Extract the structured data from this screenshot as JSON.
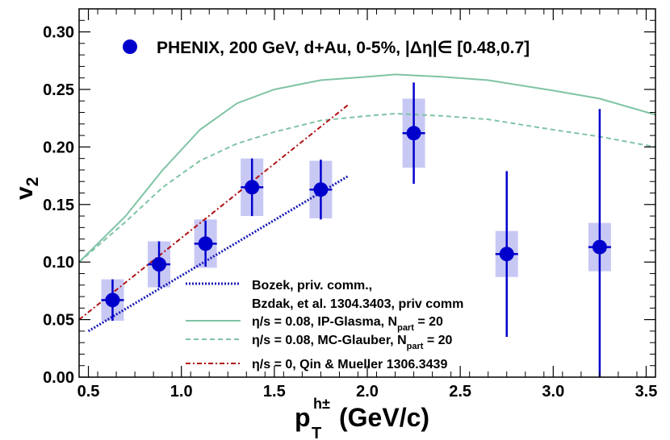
{
  "chart_data": {
    "type": "scatter",
    "title": "PHENIX, 200 GeV, d+Au, 0-5%, |Δη|∈ [0.48,0.7]",
    "xlabel": "p",
    "xlabel_sub": "T",
    "xlabel_sup": "h±",
    "xlabel_units": "(GeV/c)",
    "ylabel": "v",
    "ylabel_sub": "2",
    "xlim": [
      0.45,
      3.55
    ],
    "ylim": [
      0.0,
      0.32
    ],
    "x_ticks": [
      "0.5",
      "1.0",
      "1.5",
      "2.0",
      "2.5",
      "3.0",
      "3.5"
    ],
    "y_ticks": [
      "0.00",
      "0.05",
      "0.10",
      "0.15",
      "0.20",
      "0.25",
      "0.30"
    ],
    "x_tick_values": [
      0.5,
      1.0,
      1.5,
      2.0,
      2.5,
      3.0,
      3.5
    ],
    "y_tick_values": [
      0.0,
      0.05,
      0.1,
      0.15,
      0.2,
      0.25,
      0.3
    ],
    "grid": false,
    "data_series": {
      "name": "PHENIX, 200 GeV, d+Au, 0-5%",
      "color": "#0000cc",
      "syst_color": "#c8c8f5",
      "points": [
        {
          "x": 0.63,
          "y": 0.067,
          "stat": 0.018,
          "syst": 0.018
        },
        {
          "x": 0.88,
          "y": 0.098,
          "stat": 0.02,
          "syst": 0.02
        },
        {
          "x": 1.13,
          "y": 0.116,
          "stat": 0.02,
          "syst": 0.021
        },
        {
          "x": 1.38,
          "y": 0.165,
          "stat": 0.025,
          "syst": 0.025
        },
        {
          "x": 1.75,
          "y": 0.163,
          "stat": 0.026,
          "syst": 0.025
        },
        {
          "x": 2.25,
          "y": 0.212,
          "stat": 0.044,
          "syst": 0.03
        },
        {
          "x": 2.75,
          "y": 0.107,
          "stat": 0.072,
          "syst": 0.02
        },
        {
          "x": 3.25,
          "y": 0.113,
          "stat": 0.12,
          "syst": 0.021
        }
      ]
    },
    "curves": [
      {
        "name": "Bozek, priv. comm.,",
        "style": "dotted",
        "color": "#1a1ab5",
        "x": [
          0.5,
          1.9
        ],
        "y": [
          0.04,
          0.175
        ]
      },
      {
        "name": "η/s = 0.08, IP-Glasma, N",
        "name_sub": "part",
        "name_tail": " = 20",
        "style": "solid",
        "color": "#7fc4a4",
        "x": [
          0.45,
          0.7,
          0.9,
          1.1,
          1.3,
          1.5,
          1.75,
          2.0,
          2.15,
          2.4,
          2.65,
          3.0,
          3.25,
          3.55
        ],
        "y": [
          0.1,
          0.14,
          0.18,
          0.215,
          0.238,
          0.25,
          0.258,
          0.261,
          0.263,
          0.261,
          0.258,
          0.249,
          0.242,
          0.228
        ]
      },
      {
        "name": "η/s = 0.08, MC-Glauber, N",
        "name_sub": "part",
        "name_tail": " = 20",
        "style": "dashed",
        "color": "#7fc4a4",
        "x": [
          0.45,
          0.7,
          0.9,
          1.1,
          1.3,
          1.5,
          1.75,
          2.0,
          2.15,
          2.4,
          2.65,
          3.0,
          3.25,
          3.55
        ],
        "y": [
          0.1,
          0.135,
          0.165,
          0.188,
          0.203,
          0.213,
          0.223,
          0.227,
          0.229,
          0.227,
          0.224,
          0.215,
          0.209,
          0.2
        ]
      },
      {
        "name": "η/s = 0, Qin & Mueller 1306.3439",
        "style": "dashdot",
        "color": "#b01010",
        "x": [
          0.45,
          1.9
        ],
        "y": [
          0.05,
          0.237
        ]
      }
    ],
    "legend_extra_line": "Bzdak, et al. 1304.3403, priv comm",
    "legend_position": "bottom-center"
  }
}
